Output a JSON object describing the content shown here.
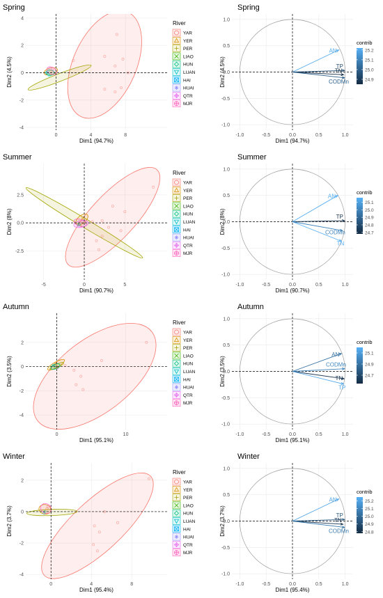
{
  "rivers": [
    {
      "code": "YAR",
      "color": "#F8766D",
      "symbol": "circle"
    },
    {
      "code": "YER",
      "color": "#D89000",
      "symbol": "triangle"
    },
    {
      "code": "PER",
      "color": "#A3A500",
      "symbol": "plus"
    },
    {
      "code": "LIAO",
      "color": "#39B600",
      "symbol": "cross"
    },
    {
      "code": "HUN",
      "color": "#00BF7D",
      "symbol": "diamond"
    },
    {
      "code": "LUAN",
      "color": "#00BFC4",
      "symbol": "triangle-down"
    },
    {
      "code": "HAI",
      "color": "#00B0F6",
      "symbol": "square-cross"
    },
    {
      "code": "HUAI",
      "color": "#9590FF",
      "symbol": "asterisk"
    },
    {
      "code": "QTR",
      "color": "#E76BF3",
      "symbol": "diamond-plus"
    },
    {
      "code": "MJR",
      "color": "#FF62BC",
      "symbol": "circle-plus"
    }
  ],
  "legend_title": "River",
  "contrib_title": "contrib",
  "chart_data": [
    {
      "type": "scatter",
      "season": "Spring",
      "title": "Spring",
      "xlabel": "Dim1 (94.7%)",
      "ylabel": "Dim2 (4.5%)",
      "xlim": [
        -3.5,
        12.8
      ],
      "ylim": [
        -4.2,
        4.3
      ],
      "xticks": [
        0,
        4,
        8
      ],
      "yticks": [
        -4,
        -2,
        0,
        2,
        4
      ],
      "ellipses": [
        {
          "river": "YAR",
          "cx": 5.6,
          "cy": 0.6,
          "rx": 6.6,
          "ry": 2.3,
          "angle": -66
        },
        {
          "river": "PER",
          "cx": 0.4,
          "cy": -0.35,
          "rx": 3.9,
          "ry": 0.28,
          "angle": -21
        },
        {
          "river": "YER",
          "cx": -0.6,
          "cy": 0.1,
          "rx": 0.8,
          "ry": 0.25,
          "angle": -15
        },
        {
          "river": "HUN",
          "cx": -0.7,
          "cy": 0.0,
          "rx": 0.5,
          "ry": 0.2,
          "angle": 0
        },
        {
          "river": "MJR",
          "cx": -0.5,
          "cy": 0.15,
          "rx": 0.6,
          "ry": 0.25,
          "angle": 30
        }
      ],
      "points": [
        {
          "river": "YAR",
          "x": 7.0,
          "y": 2.8
        },
        {
          "river": "YAR",
          "x": 5.6,
          "y": 1.2
        },
        {
          "river": "YAR",
          "x": 7.7,
          "y": 1.0
        },
        {
          "river": "YAR",
          "x": 6.8,
          "y": 0.5
        },
        {
          "river": "YAR",
          "x": 2.0,
          "y": 0.9
        },
        {
          "river": "YAR",
          "x": 7.5,
          "y": -1.1
        },
        {
          "river": "YAR",
          "x": 6.8,
          "y": -1.4
        },
        {
          "river": "YAR",
          "x": 5.6,
          "y": -1.2
        },
        {
          "river": "YAR",
          "x": 8.3,
          "y": 0.0
        },
        {
          "river": "YER",
          "x": -0.6,
          "y": 0.1
        },
        {
          "river": "HUN",
          "x": -0.9,
          "y": -0.1
        },
        {
          "river": "HAI",
          "x": -1.0,
          "y": 0.0
        },
        {
          "river": "MJR",
          "x": -0.4,
          "y": 0.2
        },
        {
          "river": "QTR",
          "x": -0.7,
          "y": 0.3
        },
        {
          "river": "LUAN",
          "x": -0.8,
          "y": -0.2
        }
      ],
      "circle": {
        "xlabel": "Dim1 (94.7%)",
        "ylabel": "Dim2 (4.5%)",
        "arrows": [
          {
            "label": "AN",
            "x": 0.88,
            "y": 0.42,
            "contrib": 25.2
          },
          {
            "label": "TP",
            "x": 0.99,
            "y": 0.03,
            "contrib": 24.95
          },
          {
            "label": "TN",
            "x": 0.97,
            "y": -0.05,
            "contrib": 24.85
          },
          {
            "label": "CODMn",
            "x": 0.99,
            "y": -0.11,
            "contrib": 25.0
          }
        ],
        "legend_ticks": [
          25.2,
          25.1,
          25.0,
          24.9
        ],
        "contrib_range": [
          24.85,
          25.22
        ]
      }
    },
    {
      "type": "scatter",
      "season": "Summer",
      "title": "Summer",
      "xlabel": "Dim1 (90.7%)",
      "ylabel": "Dim2 (8%)",
      "xlim": [
        -7.2,
        10.2
      ],
      "ylim": [
        -5.1,
        5.3
      ],
      "xticks": [
        -5,
        0,
        5
      ],
      "yticks": [
        -2.5,
        0.0,
        2.5
      ],
      "ellipses": [
        {
          "river": "YAR",
          "cx": 3.5,
          "cy": 0.5,
          "rx": 8.0,
          "ry": 2.0,
          "angle": -47
        },
        {
          "river": "PER",
          "cx": 0.0,
          "cy": 0.0,
          "rx": 8.4,
          "ry": 0.38,
          "angle": 31
        },
        {
          "river": "YER",
          "cx": -0.3,
          "cy": 0.3,
          "rx": 0.9,
          "ry": 0.35,
          "angle": -40
        },
        {
          "river": "MJR",
          "cx": -0.5,
          "cy": 0.0,
          "rx": 0.8,
          "ry": 0.3,
          "angle": 20
        },
        {
          "river": "QTR",
          "cx": -0.4,
          "cy": -0.1,
          "rx": 0.9,
          "ry": 0.3,
          "angle": -10
        }
      ],
      "points": [
        {
          "river": "YAR",
          "x": 8.5,
          "y": 3.2
        },
        {
          "river": "YAR",
          "x": 3.5,
          "y": 1.5
        },
        {
          "river": "YAR",
          "x": 5.0,
          "y": 1.0
        },
        {
          "river": "YAR",
          "x": 2.2,
          "y": 0.2
        },
        {
          "river": "YAR",
          "x": 1.0,
          "y": 0.1
        },
        {
          "river": "YAR",
          "x": 3.0,
          "y": -0.4
        },
        {
          "river": "YAR",
          "x": 4.5,
          "y": -0.7
        },
        {
          "river": "YAR",
          "x": 2.2,
          "y": -1.2
        },
        {
          "river": "YAR",
          "x": 1.5,
          "y": -1.6
        },
        {
          "river": "YAR",
          "x": 1.8,
          "y": -2.4
        },
        {
          "river": "YER",
          "x": -0.2,
          "y": 0.4
        },
        {
          "river": "HUN",
          "x": -0.6,
          "y": -0.1
        },
        {
          "river": "MJR",
          "x": -0.5,
          "y": 0.1
        },
        {
          "river": "HAI",
          "x": -0.7,
          "y": -0.2
        }
      ],
      "circle": {
        "xlabel": "Dim1 (90.7%)",
        "ylabel": "Dim2 (8%)",
        "arrows": [
          {
            "label": "AN",
            "x": 0.86,
            "y": 0.5,
            "contrib": 25.15
          },
          {
            "label": "TP",
            "x": 0.99,
            "y": 0.02,
            "contrib": 24.7
          },
          {
            "label": "CODMn",
            "x": 0.95,
            "y": -0.17,
            "contrib": 25.0
          },
          {
            "label": "TN",
            "x": 0.93,
            "y": -0.37,
            "contrib": 25.15
          }
        ],
        "legend_ticks": [
          25.1,
          25.0,
          24.9,
          24.8,
          24.7
        ],
        "contrib_range": [
          24.68,
          25.16
        ]
      }
    },
    {
      "type": "scatter",
      "season": "Autumn",
      "title": "Autumn",
      "xlabel": "Dim1 (95.1%)",
      "ylabel": "Dim2 (3.5%)",
      "xlim": [
        -4.5,
        16.0
      ],
      "ylim": [
        -5.2,
        4.4
      ],
      "xticks": [
        0,
        10
      ],
      "yticks": [
        -4,
        -2,
        0,
        2
      ],
      "ellipses": [
        {
          "river": "YAR",
          "cx": 5.5,
          "cy": -0.8,
          "rx": 10.5,
          "ry": 3.0,
          "angle": -38
        },
        {
          "river": "YER",
          "cx": -0.1,
          "cy": 0.15,
          "rx": 1.4,
          "ry": 0.22,
          "angle": -30
        },
        {
          "river": "PER",
          "cx": 0.0,
          "cy": 0.05,
          "rx": 1.1,
          "ry": 0.15,
          "angle": -25
        },
        {
          "river": "HUN",
          "cx": -0.2,
          "cy": 0.0,
          "rx": 0.7,
          "ry": 0.2,
          "angle": -20
        }
      ],
      "points": [
        {
          "river": "YAR",
          "x": 13.0,
          "y": 2.0
        },
        {
          "river": "YAR",
          "x": 6.5,
          "y": 0.5
        },
        {
          "river": "YAR",
          "x": 2.5,
          "y": -0.3
        },
        {
          "river": "YAR",
          "x": 3.5,
          "y": -0.8
        },
        {
          "river": "YAR",
          "x": 2.8,
          "y": -1.5
        },
        {
          "river": "YAR",
          "x": 3.8,
          "y": -1.9
        },
        {
          "river": "YAR",
          "x": 1.2,
          "y": 0.1
        },
        {
          "river": "YER",
          "x": -0.2,
          "y": 0.2
        },
        {
          "river": "HUN",
          "x": -0.3,
          "y": 0.0
        },
        {
          "river": "HAI",
          "x": -0.5,
          "y": 0.1
        },
        {
          "river": "MJR",
          "x": 0.1,
          "y": -0.1
        }
      ],
      "circle": {
        "xlabel": "Dim1 (95.1%)",
        "ylabel": "Dim2 (3.5%)",
        "arrows": [
          {
            "label": "AN",
            "x": 0.93,
            "y": 0.34,
            "contrib": 24.9
          },
          {
            "label": "CODMn",
            "x": 0.99,
            "y": 0.05,
            "contrib": 25.0
          },
          {
            "label": "TN",
            "x": 0.98,
            "y": -0.14,
            "contrib": 24.6
          },
          {
            "label": "TP",
            "x": 0.97,
            "y": -0.24,
            "contrib": 25.15
          }
        ],
        "legend_ticks": [
          25.1,
          24.9,
          24.7
        ],
        "contrib_range": [
          24.55,
          25.2
        ]
      }
    },
    {
      "type": "scatter",
      "season": "Winter",
      "title": "Winter",
      "xlabel": "Dim1 (95.4%)",
      "ylabel": "Dim2 (3.7%)",
      "xlim": [
        -2.5,
        11.5
      ],
      "ylim": [
        -4.3,
        3.1
      ],
      "xticks": [
        0,
        4,
        8
      ],
      "yticks": [
        -4,
        -2,
        0,
        2
      ],
      "ellipses": [
        {
          "river": "YAR",
          "cx": 4.6,
          "cy": -0.9,
          "rx": 7.2,
          "ry": 1.6,
          "angle": -43
        },
        {
          "river": "PER",
          "cx": 0.1,
          "cy": -0.05,
          "rx": 2.5,
          "ry": 0.2,
          "angle": -2
        },
        {
          "river": "YER",
          "cx": -0.6,
          "cy": 0.15,
          "rx": 0.6,
          "ry": 0.3,
          "angle": 10
        },
        {
          "river": "MJR",
          "cx": -0.5,
          "cy": 0.2,
          "rx": 0.55,
          "ry": 0.3,
          "angle": 30
        }
      ],
      "points": [
        {
          "river": "YAR",
          "x": 9.7,
          "y": 2.1
        },
        {
          "river": "YAR",
          "x": 5.3,
          "y": 0.0
        },
        {
          "river": "YAR",
          "x": 6.6,
          "y": -0.7
        },
        {
          "river": "YAR",
          "x": 4.3,
          "y": -0.9
        },
        {
          "river": "YAR",
          "x": 4.8,
          "y": -1.3
        },
        {
          "river": "YAR",
          "x": 4.2,
          "y": -2.1
        },
        {
          "river": "YAR",
          "x": 4.6,
          "y": -2.5
        },
        {
          "river": "YER",
          "x": -0.4,
          "y": 0.2
        },
        {
          "river": "HUN",
          "x": -0.6,
          "y": 0.0
        },
        {
          "river": "MJR",
          "x": -0.3,
          "y": 0.3
        },
        {
          "river": "HAI",
          "x": -0.7,
          "y": -0.1
        }
      ],
      "circle": {
        "xlabel": "Dim1 (95.4%)",
        "ylabel": "Dim2 (3.7%)",
        "arrows": [
          {
            "label": "AN",
            "x": 0.88,
            "y": 0.42,
            "contrib": 25.2
          },
          {
            "label": "TP",
            "x": 0.99,
            "y": 0.03,
            "contrib": 24.95
          },
          {
            "label": "TN",
            "x": 0.96,
            "y": -0.06,
            "contrib": 24.82
          },
          {
            "label": "CODMn",
            "x": 0.99,
            "y": -0.12,
            "contrib": 25.05
          }
        ],
        "legend_ticks": [
          25.2,
          25.1,
          25.0,
          24.9,
          24.8
        ],
        "contrib_range": [
          24.78,
          25.25
        ]
      }
    }
  ],
  "circle_ticks": [
    -1.0,
    -0.5,
    0.0,
    0.5,
    1.0
  ]
}
